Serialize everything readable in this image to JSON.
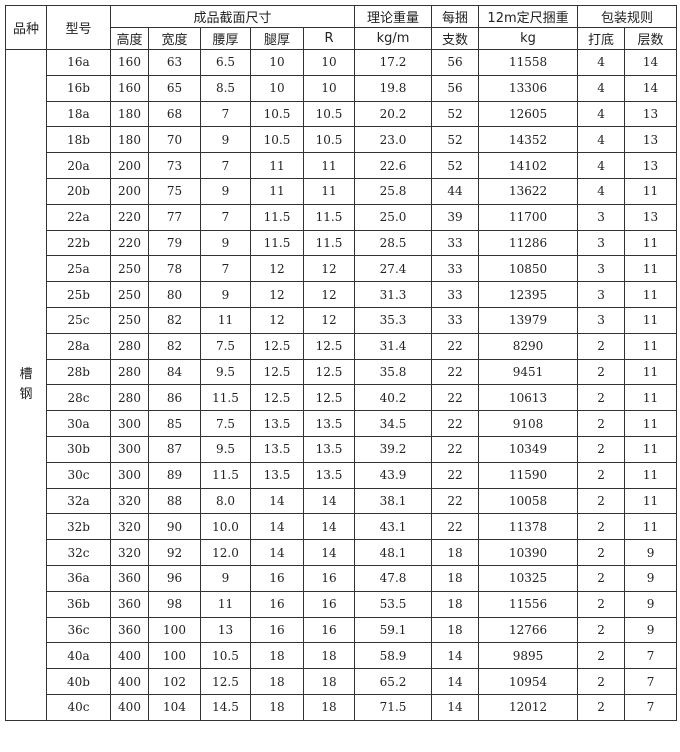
{
  "header": {
    "category": "品种",
    "model": "型号",
    "dimensions": "成品截面尺寸",
    "height": "高度",
    "width": "宽度",
    "web_thickness": "腰厚",
    "flange_thickness": "腿厚",
    "r": "R",
    "weight": "理论重量",
    "weight_unit": "kg/m",
    "per_bundle_1": "每捆",
    "per_bundle_2": "支数",
    "bundle_weight": "12m定尺捆重",
    "bundle_weight_unit": "kg",
    "packing": "包装规则",
    "base": "打底",
    "layers": "层数"
  },
  "category": "槽\n钢",
  "rows": [
    [
      "16a",
      "160",
      "63",
      "6.5",
      "10",
      "10",
      "17.2",
      "56",
      "11558",
      "4",
      "14"
    ],
    [
      "16b",
      "160",
      "65",
      "8.5",
      "10",
      "10",
      "19.8",
      "56",
      "13306",
      "4",
      "14"
    ],
    [
      "18a",
      "180",
      "68",
      "7",
      "10.5",
      "10.5",
      "20.2",
      "52",
      "12605",
      "4",
      "13"
    ],
    [
      "18b",
      "180",
      "70",
      "9",
      "10.5",
      "10.5",
      "23.0",
      "52",
      "14352",
      "4",
      "13"
    ],
    [
      "20a",
      "200",
      "73",
      "7",
      "11",
      "11",
      "22.6",
      "52",
      "14102",
      "4",
      "13"
    ],
    [
      "20b",
      "200",
      "75",
      "9",
      "11",
      "11",
      "25.8",
      "44",
      "13622",
      "4",
      "11"
    ],
    [
      "22a",
      "220",
      "77",
      "7",
      "11.5",
      "11.5",
      "25.0",
      "39",
      "11700",
      "3",
      "13"
    ],
    [
      "22b",
      "220",
      "79",
      "9",
      "11.5",
      "11.5",
      "28.5",
      "33",
      "11286",
      "3",
      "11"
    ],
    [
      "25a",
      "250",
      "78",
      "7",
      "12",
      "12",
      "27.4",
      "33",
      "10850",
      "3",
      "11"
    ],
    [
      "25b",
      "250",
      "80",
      "9",
      "12",
      "12",
      "31.3",
      "33",
      "12395",
      "3",
      "11"
    ],
    [
      "25c",
      "250",
      "82",
      "11",
      "12",
      "12",
      "35.3",
      "33",
      "13979",
      "3",
      "11"
    ],
    [
      "28a",
      "280",
      "82",
      "7.5",
      "12.5",
      "12.5",
      "31.4",
      "22",
      "8290",
      "2",
      "11"
    ],
    [
      "28b",
      "280",
      "84",
      "9.5",
      "12.5",
      "12.5",
      "35.8",
      "22",
      "9451",
      "2",
      "11"
    ],
    [
      "28c",
      "280",
      "86",
      "11.5",
      "12.5",
      "12.5",
      "40.2",
      "22",
      "10613",
      "2",
      "11"
    ],
    [
      "30a",
      "300",
      "85",
      "7.5",
      "13.5",
      "13.5",
      "34.5",
      "22",
      "9108",
      "2",
      "11"
    ],
    [
      "30b",
      "300",
      "87",
      "9.5",
      "13.5",
      "13.5",
      "39.2",
      "22",
      "10349",
      "2",
      "11"
    ],
    [
      "30c",
      "300",
      "89",
      "11.5",
      "13.5",
      "13.5",
      "43.9",
      "22",
      "11590",
      "2",
      "11"
    ],
    [
      "32a",
      "320",
      "88",
      "8.0",
      "14",
      "14",
      "38.1",
      "22",
      "10058",
      "2",
      "11"
    ],
    [
      "32b",
      "320",
      "90",
      "10.0",
      "14",
      "14",
      "43.1",
      "22",
      "11378",
      "2",
      "11"
    ],
    [
      "32c",
      "320",
      "92",
      "12.0",
      "14",
      "14",
      "48.1",
      "18",
      "10390",
      "2",
      "9"
    ],
    [
      "36a",
      "360",
      "96",
      "9",
      "16",
      "16",
      "47.8",
      "18",
      "10325",
      "2",
      "9"
    ],
    [
      "36b",
      "360",
      "98",
      "11",
      "16",
      "16",
      "53.5",
      "18",
      "11556",
      "2",
      "9"
    ],
    [
      "36c",
      "360",
      "100",
      "13",
      "16",
      "16",
      "59.1",
      "18",
      "12766",
      "2",
      "9"
    ],
    [
      "40a",
      "400",
      "100",
      "10.5",
      "18",
      "18",
      "58.9",
      "14",
      "9895",
      "2",
      "7"
    ],
    [
      "40b",
      "400",
      "102",
      "12.5",
      "18",
      "18",
      "65.2",
      "14",
      "10954",
      "2",
      "7"
    ],
    [
      "40c",
      "400",
      "104",
      "14.5",
      "18",
      "18",
      "71.5",
      "14",
      "12012",
      "2",
      "7"
    ]
  ]
}
